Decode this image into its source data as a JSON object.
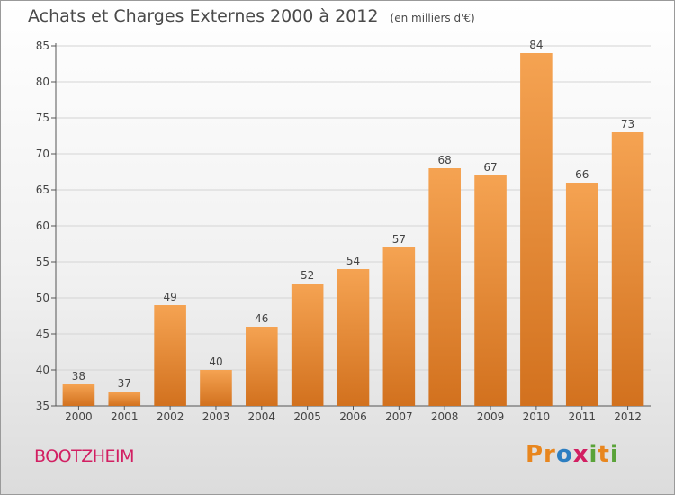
{
  "title": "Achats et Charges Externes 2000 à 2012",
  "subtitle": "(en milliers d'€)",
  "commune": "BOOTZHEIM",
  "logo": "Proxiti",
  "colors": {
    "bar_top": "#f5a352",
    "bar_bottom": "#d2711e",
    "commune": "#d21f62"
  },
  "chart_data": {
    "type": "bar",
    "title": "Achats et Charges Externes 2000 à 2012",
    "subtitle": "(en milliers d'€)",
    "xlabel": "",
    "ylabel": "",
    "categories": [
      "2000",
      "2001",
      "2002",
      "2003",
      "2004",
      "2005",
      "2006",
      "2007",
      "2008",
      "2009",
      "2010",
      "2011",
      "2012"
    ],
    "values": [
      38,
      37,
      49,
      40,
      46,
      52,
      54,
      57,
      68,
      67,
      84,
      66,
      73
    ],
    "ylim": [
      35,
      85
    ],
    "yticks": [
      35,
      40,
      45,
      50,
      55,
      60,
      65,
      70,
      75,
      80,
      85
    ],
    "grid": true
  }
}
